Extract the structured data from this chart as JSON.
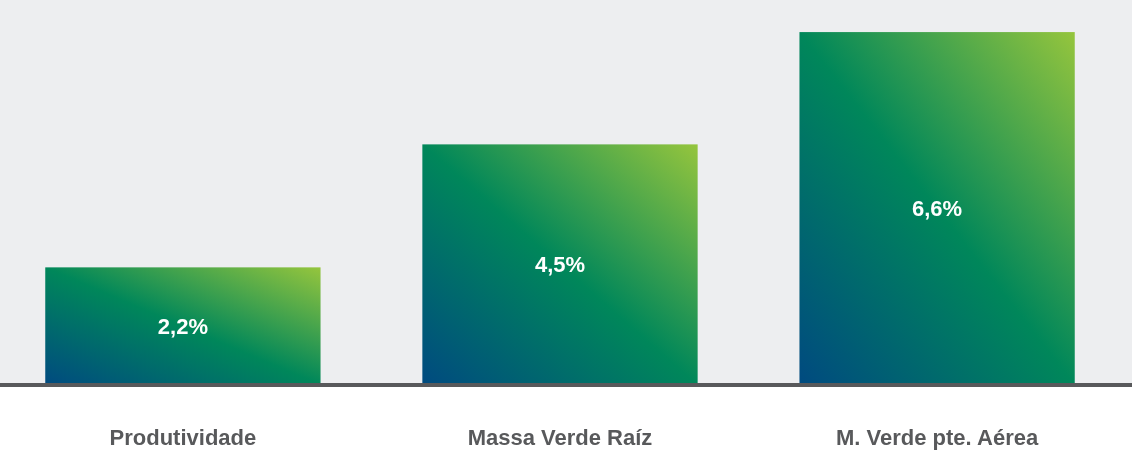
{
  "chart_data": {
    "type": "bar",
    "categories": [
      "Produtividade",
      "Massa Verde Raíz",
      "M. Verde pte. Aérea"
    ],
    "values": [
      2.2,
      4.5,
      6.6
    ],
    "value_labels": [
      "2,2%",
      "4,5%",
      "6,6%"
    ],
    "color": "#00875a",
    "ylim": [
      0,
      7.2
    ]
  }
}
